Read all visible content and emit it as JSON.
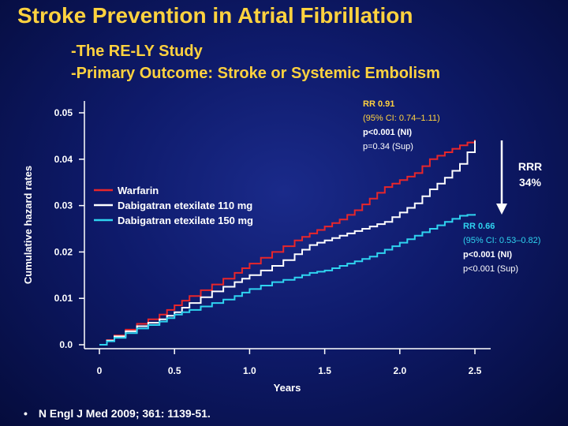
{
  "header": {
    "title": "Stroke Prevention in Atrial Fibrillation",
    "subtitle1": "-The RE-LY Study",
    "subtitle2": "-Primary Outcome:  Stroke or Systemic Embolism"
  },
  "chart_data": {
    "type": "line",
    "xlabel": "Years",
    "ylabel": "Cumulative hazard rates",
    "xlim": [
      0,
      2.5
    ],
    "ylim": [
      0,
      0.05
    ],
    "x_ticks": [
      "0",
      "0.5",
      "1.0",
      "1.5",
      "2.0",
      "2.5"
    ],
    "y_ticks": [
      "0.0",
      "0.01",
      "0.02",
      "0.03",
      "0.04",
      "0.05"
    ],
    "legend_position": "left-center",
    "series": [
      {
        "name": "Warfarin",
        "color": "#e8262a",
        "x": [
          0,
          0.1,
          0.25,
          0.4,
          0.5,
          0.6,
          0.75,
          0.9,
          1.0,
          1.15,
          1.3,
          1.4,
          1.5,
          1.6,
          1.7,
          1.8,
          1.9,
          2.0,
          2.1,
          2.2,
          2.3,
          2.4,
          2.5
        ],
        "y": [
          0,
          0.002,
          0.0045,
          0.0065,
          0.0085,
          0.0105,
          0.013,
          0.0155,
          0.0175,
          0.02,
          0.0225,
          0.024,
          0.0255,
          0.027,
          0.029,
          0.0315,
          0.034,
          0.0355,
          0.037,
          0.04,
          0.0415,
          0.043,
          0.0442
        ]
      },
      {
        "name": "Dabigatran etexilate 110 mg",
        "color": "#ffffff",
        "x": [
          0,
          0.1,
          0.25,
          0.4,
          0.5,
          0.6,
          0.75,
          0.9,
          1.0,
          1.15,
          1.3,
          1.4,
          1.5,
          1.6,
          1.7,
          1.8,
          1.9,
          2.0,
          2.1,
          2.2,
          2.3,
          2.4,
          2.5
        ],
        "y": [
          0,
          0.0018,
          0.004,
          0.0055,
          0.007,
          0.009,
          0.0115,
          0.0135,
          0.015,
          0.017,
          0.0195,
          0.0215,
          0.0225,
          0.0235,
          0.0245,
          0.0255,
          0.0265,
          0.0285,
          0.0305,
          0.0335,
          0.036,
          0.039,
          0.044
        ]
      },
      {
        "name": "Dabigatran etexilate 150 mg",
        "color": "#2fd4f0",
        "x": [
          0,
          0.1,
          0.25,
          0.4,
          0.5,
          0.6,
          0.75,
          0.9,
          1.0,
          1.15,
          1.3,
          1.4,
          1.5,
          1.6,
          1.7,
          1.8,
          1.9,
          2.0,
          2.1,
          2.2,
          2.3,
          2.4,
          2.5
        ],
        "y": [
          0,
          0.0015,
          0.0035,
          0.005,
          0.0065,
          0.0075,
          0.009,
          0.0105,
          0.012,
          0.0135,
          0.0145,
          0.0155,
          0.016,
          0.017,
          0.018,
          0.019,
          0.0205,
          0.022,
          0.0235,
          0.025,
          0.0265,
          0.0278,
          0.0282
        ]
      }
    ],
    "annotations": {
      "upper": {
        "line1": "RR 0.91",
        "line2": "(95% CI: 0.74–1.11)",
        "line3": "p<0.001 (NI)",
        "line4": "p=0.34 (Sup)"
      },
      "lower": {
        "line1": "RR 0.66",
        "line2": "(95% CI: 0.53–0.82)",
        "line3": "p<0.001 (NI)",
        "line4": "p<0.001 (Sup)"
      },
      "rrr": {
        "line1": "RRR",
        "line2": "34%"
      }
    }
  },
  "reference": {
    "bullet": "•",
    "text": "N Engl J Med 2009; 361: 1139-51."
  },
  "colors": {
    "title": "#ffd23f",
    "upper_annotation": "#ffd23f",
    "lower_annotation": "#2fd4f0",
    "axis": "#ffffff"
  }
}
